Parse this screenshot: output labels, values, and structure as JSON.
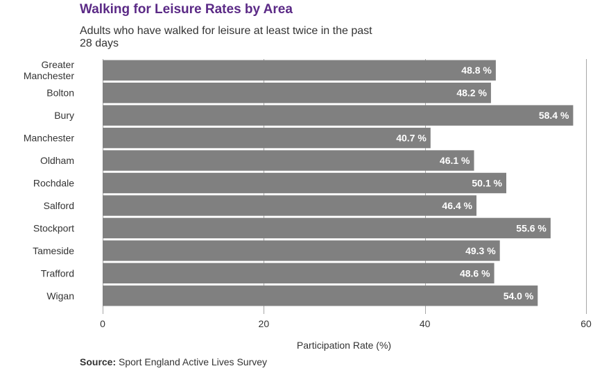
{
  "chart_data": {
    "type": "bar",
    "orientation": "horizontal",
    "title": "Walking for Leisure Rates by Area",
    "subtitle": "Adults who have walked for leisure at least twice in the past 28 days",
    "categories": [
      "Greater Manchester",
      "Bolton",
      "Bury",
      "Manchester",
      "Oldham",
      "Rochdale",
      "Salford",
      "Stockport",
      "Tameside",
      "Trafford",
      "Wigan"
    ],
    "values": [
      48.8,
      48.2,
      58.4,
      40.7,
      46.1,
      50.1,
      46.4,
      55.6,
      49.3,
      48.6,
      54.0
    ],
    "data_labels": [
      "48.8 %",
      "48.2 %",
      "58.4 %",
      "40.7 %",
      "46.1 %",
      "50.1 %",
      "46.4 %",
      "55.6 %",
      "49.3 %",
      "48.6 %",
      "54.0 %"
    ],
    "xlabel": "Participation Rate (%)",
    "ylabel": "",
    "xlim": [
      0,
      60
    ],
    "xticks": [
      0,
      20,
      40,
      60
    ],
    "grid": true,
    "legend": "none",
    "bar_color": "#808080",
    "label_color": "#ffffff",
    "title_color": "#5b2a86"
  },
  "source": {
    "label": "Source:",
    "text": " Sport England Active Lives Survey"
  }
}
